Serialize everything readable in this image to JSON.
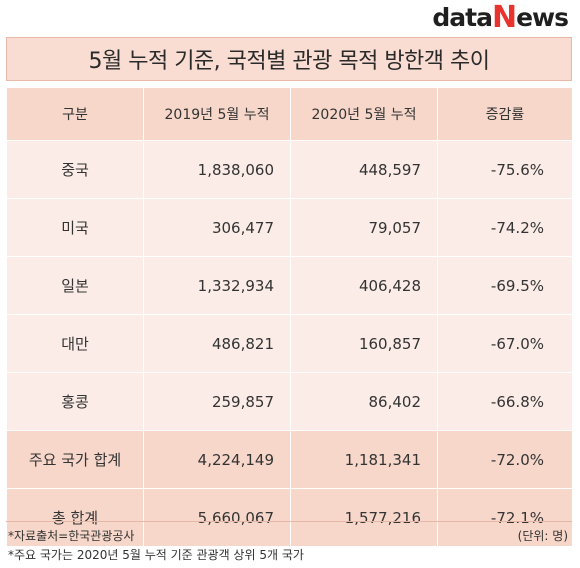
{
  "brand": {
    "logo_data": "data",
    "logo_n": "N",
    "logo_ews": "ews"
  },
  "title": "5월 누적 기준, 국적별 관광 목적 방한객 추이",
  "table": {
    "headers": [
      "구분",
      "2019년 5월 누적",
      "2020년 5월 누적",
      "증감률"
    ],
    "rows": [
      {
        "label": "중국",
        "y2019": "1,838,060",
        "y2020": "448,597",
        "rate": "-75.6%"
      },
      {
        "label": "미국",
        "y2019": "306,477",
        "y2020": "79,057",
        "rate": "-74.2%"
      },
      {
        "label": "일본",
        "y2019": "1,332,934",
        "y2020": "406,428",
        "rate": "-69.5%"
      },
      {
        "label": "대만",
        "y2019": "486,821",
        "y2020": "160,857",
        "rate": "-67.0%"
      },
      {
        "label": "홍콩",
        "y2019": "259,857",
        "y2020": "86,402",
        "rate": "-66.8%"
      },
      {
        "label": "주요 국가 합계",
        "y2019": "4,224,149",
        "y2020": "1,181,341",
        "rate": "-72.0%"
      },
      {
        "label": "총 합계",
        "y2019": "5,660,067",
        "y2020": "1,577,216",
        "rate": "-72.1%"
      }
    ]
  },
  "footnotes": {
    "source": "*자료출처=한국관광공사",
    "unit": "(단위: 명)",
    "note": "*주요 국가는 2020년 5월 누적 기준 관광객 상위 5개 국가"
  },
  "colors": {
    "title_bg": "#f9ddd2",
    "header_bg": "#f6d7ca",
    "row_bg": "#fbece7",
    "summary_bg": "#f6d7ca",
    "logo_accent": "#e8332f"
  }
}
